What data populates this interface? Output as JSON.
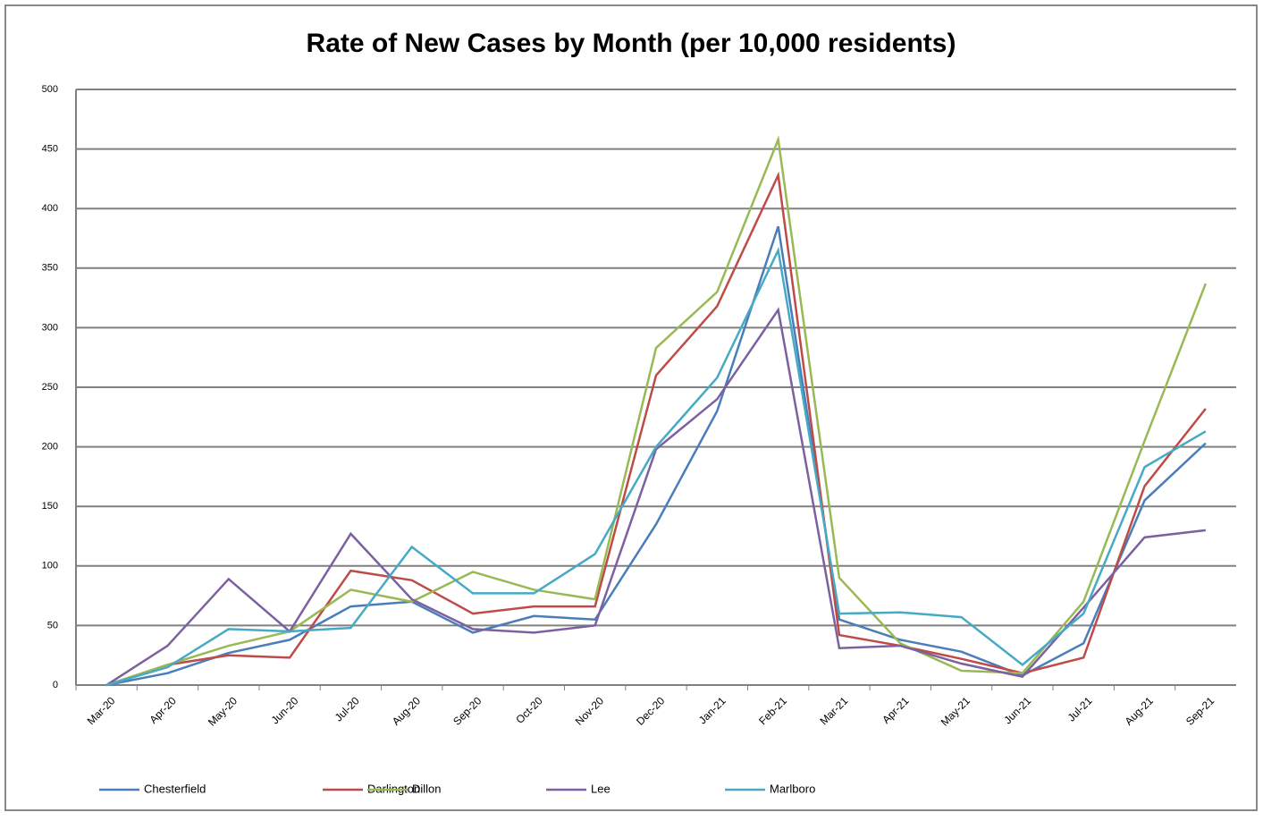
{
  "chart_data": {
    "type": "line",
    "title": "Rate of New Cases by Month (per 10,000 residents)",
    "categories": [
      "Mar-20",
      "Apr-20",
      "May-20",
      "Jun-20",
      "Jul-20",
      "Aug-20",
      "Sep-20",
      "Oct-20",
      "Nov-20",
      "Dec-20",
      "Jan-21",
      "Feb-21",
      "Mar-21",
      "Apr-21",
      "May-21",
      "Jun-21",
      "Jul-21",
      "Aug-21",
      "Sep-21"
    ],
    "series": [
      {
        "name": "Chesterfield",
        "color": "#4a7ebb",
        "values": [
          0,
          10,
          27,
          38,
          66,
          70,
          44,
          58,
          55,
          135,
          230,
          385,
          55,
          38,
          28,
          8,
          35,
          155,
          203
        ]
      },
      {
        "name": "Darlington",
        "color": "#be4b48",
        "values": [
          0,
          17,
          25,
          23,
          96,
          88,
          60,
          66,
          66,
          260,
          318,
          428,
          42,
          33,
          22,
          10,
          23,
          167,
          232
        ]
      },
      {
        "name": "Dillon",
        "color": "#98b954",
        "values": [
          0,
          17,
          33,
          45,
          80,
          70,
          95,
          80,
          72,
          283,
          330,
          458,
          90,
          35,
          12,
          10,
          70,
          205,
          337
        ]
      },
      {
        "name": "Lee",
        "color": "#7d60a0",
        "values": [
          0,
          33,
          89,
          45,
          127,
          72,
          47,
          44,
          50,
          198,
          240,
          315,
          31,
          33,
          18,
          7,
          65,
          124,
          130
        ]
      },
      {
        "name": "Marlboro",
        "color": "#46aac5",
        "values": [
          0,
          15,
          47,
          45,
          48,
          116,
          77,
          77,
          110,
          200,
          258,
          365,
          60,
          61,
          57,
          17,
          60,
          183,
          213
        ]
      }
    ],
    "ylim": [
      0,
      500
    ],
    "yticks": [
      0,
      50,
      100,
      150,
      200,
      250,
      300,
      350,
      400,
      450,
      500
    ],
    "grid": true,
    "legend": "bottom"
  }
}
